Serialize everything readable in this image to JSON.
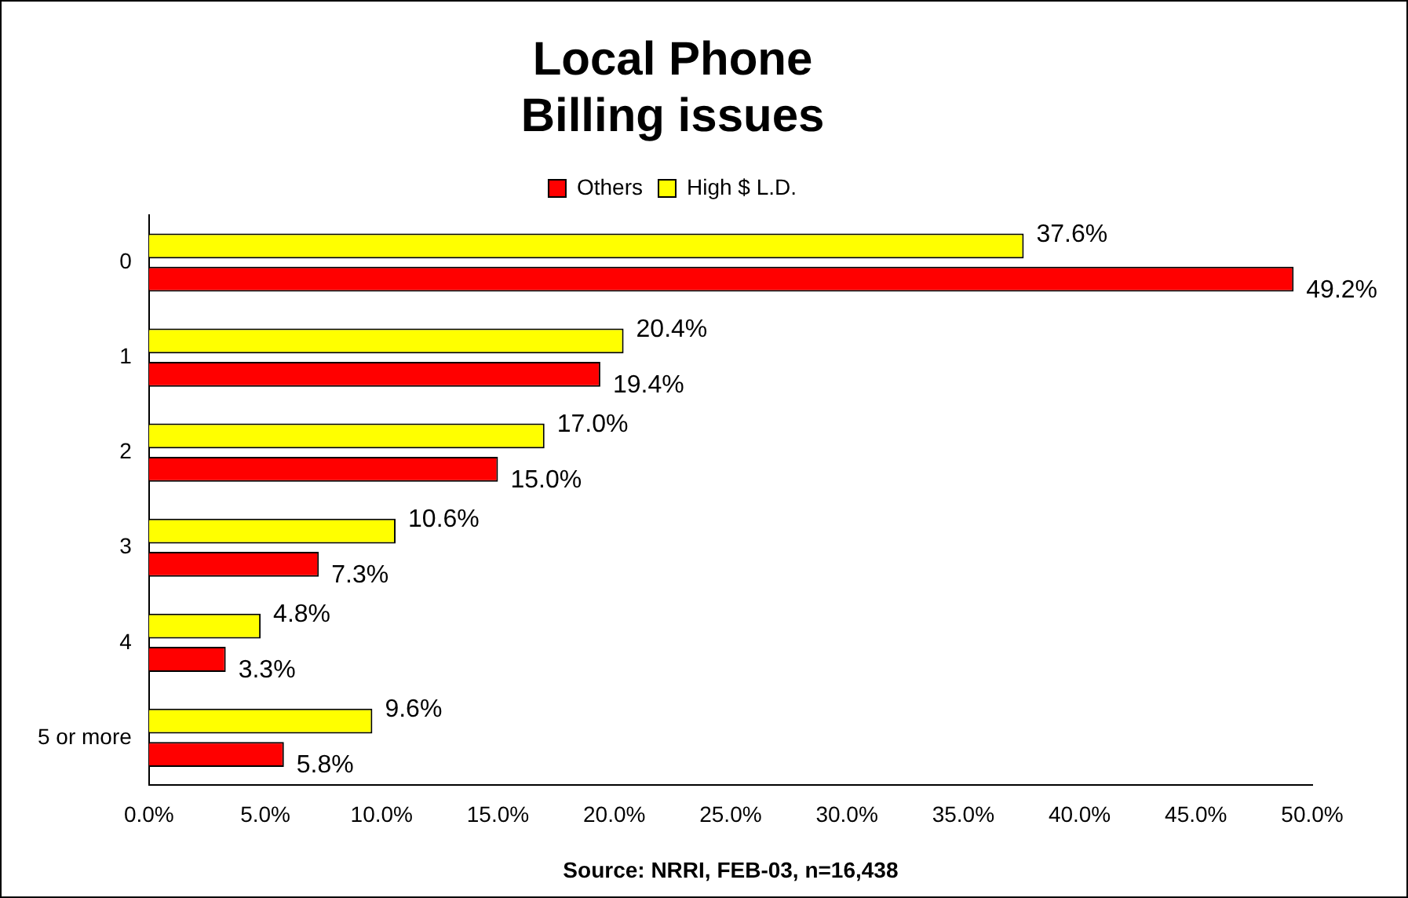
{
  "chart_data": {
    "type": "bar",
    "orientation": "horizontal",
    "title": "Local Phone\nBilling issues",
    "categories": [
      "0",
      "1",
      "2",
      "3",
      "4",
      "5 or more"
    ],
    "series": [
      {
        "name": "Others",
        "color": "#ff0000",
        "values": [
          49.2,
          19.4,
          15.0,
          7.3,
          3.3,
          5.8
        ],
        "value_labels": [
          "49.2%",
          "19.4%",
          "15.0%",
          "7.3%",
          "3.3%",
          "5.8%"
        ]
      },
      {
        "name": "High $ L.D.",
        "color": "#ffff00",
        "values": [
          37.6,
          20.4,
          17.0,
          10.6,
          4.8,
          9.6
        ],
        "value_labels": [
          "37.6%",
          "20.4%",
          "17.0%",
          "10.6%",
          "4.8%",
          "9.6%"
        ]
      }
    ],
    "xlim": [
      0,
      50
    ],
    "xticks": [
      {
        "value": 0,
        "label": "0.0%"
      },
      {
        "value": 5,
        "label": "5.0%"
      },
      {
        "value": 10,
        "label": "10.0%"
      },
      {
        "value": 15,
        "label": "15.0%"
      },
      {
        "value": 20,
        "label": "20.0%"
      },
      {
        "value": 25,
        "label": "25.0%"
      },
      {
        "value": 30,
        "label": "30.0%"
      },
      {
        "value": 35,
        "label": "35.0%"
      },
      {
        "value": 40,
        "label": "40.0%"
      },
      {
        "value": 45,
        "label": "45.0%"
      },
      {
        "value": 50,
        "label": "50.0%"
      }
    ],
    "legend": "top",
    "grid": false,
    "annotations": [
      "Source: NRRI, FEB-03, n=16,438"
    ]
  }
}
